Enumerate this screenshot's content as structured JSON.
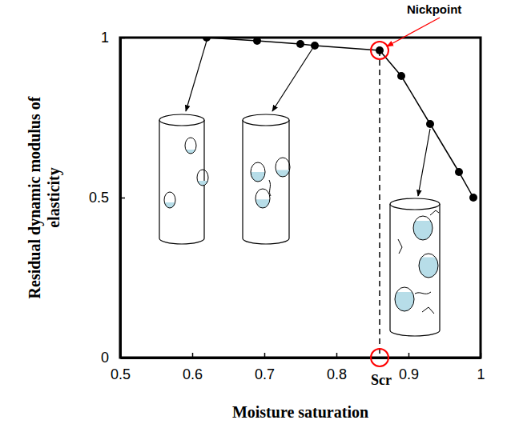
{
  "chart_data": {
    "type": "line",
    "x_label": "Moisture saturation",
    "y_label": "Residual dynamic modulus of elasticity",
    "x": [
      0.62,
      0.69,
      0.75,
      0.77,
      0.86,
      0.89,
      0.93,
      0.97,
      0.99
    ],
    "series": [
      {
        "name": "Residual dynamic modulus of elasticity",
        "color": "#000000",
        "marker": "circle",
        "line_style": "solid",
        "values": [
          1.0,
          0.99,
          0.98,
          0.975,
          0.96,
          0.88,
          0.73,
          0.58,
          0.5
        ]
      }
    ],
    "xlim": [
      0.5,
      1
    ],
    "ylim": [
      0,
      1
    ],
    "xticks": [
      0.5,
      0.6,
      0.7,
      0.8,
      0.9,
      1
    ],
    "yticks": [
      0,
      0.5,
      1
    ],
    "grid": false,
    "annotations": [
      {
        "text": "Nickpoint",
        "x": 0.86,
        "y": 0.96,
        "color": "#ff0000"
      },
      {
        "text": "Scr",
        "x": 0.86,
        "y": 0,
        "color": "#ff0000"
      }
    ]
  }
}
